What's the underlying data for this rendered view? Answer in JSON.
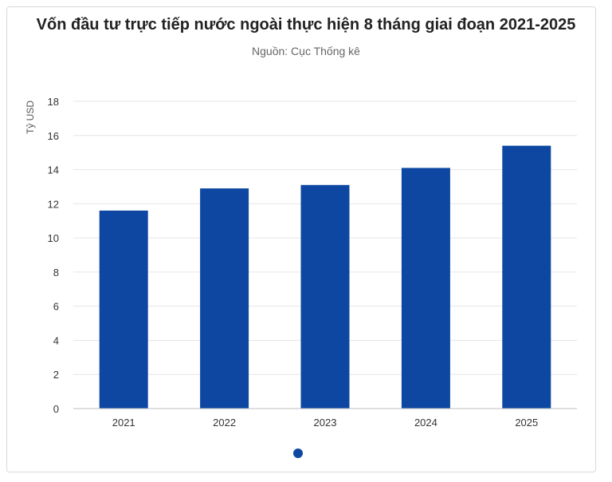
{
  "title": "Vốn đầu tư trực tiếp nước ngoài thực hiện 8 tháng giai đoạn 2021-2025",
  "subtitle": "Nguồn: Cục Thống kê",
  "colors": {
    "bar": "#0d47a1",
    "grid": "#e6e6e6",
    "axis": "#bfbfbf",
    "dot": "#0d47a1"
  },
  "pager": {
    "active_dot_icon": "pagination-dot-icon"
  },
  "chart_data": {
    "type": "bar",
    "categories": [
      "2021",
      "2022",
      "2023",
      "2024",
      "2025"
    ],
    "values": [
      11.6,
      12.9,
      13.1,
      14.1,
      15.4
    ],
    "ylabel": "Tỷ USD",
    "xlabel": "",
    "ylim": [
      0,
      18
    ],
    "yticks": [
      "0",
      "2",
      "4",
      "6",
      "8",
      "10",
      "12",
      "14",
      "16",
      "18"
    ],
    "grid": true
  }
}
